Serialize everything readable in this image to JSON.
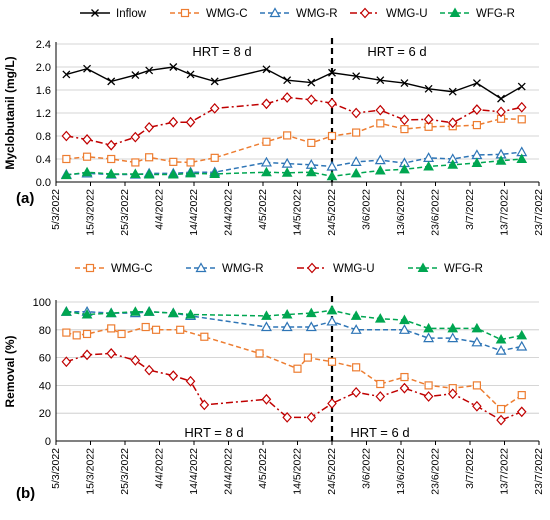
{
  "figure": {
    "chart_data": [
      {
        "panel_label": "(a)",
        "type": "line",
        "ylabel": "Myclobutanil (mg/L)",
        "xlabel": "",
        "ylim": [
          0,
          2.4
        ],
        "yticks": [
          "0.0",
          "0.4",
          "0.8",
          "1.2",
          "1.6",
          "2.0",
          "2.4"
        ],
        "grid": "horizontal",
        "legend": "top",
        "x_tick_labels": [
          "5/3/2022",
          "15/3/2022",
          "25/3/2022",
          "4/4/2022",
          "14/4/2022",
          "24/4/2022",
          "4/5/2022",
          "14/5/2022",
          "24/5/2022",
          "3/6/2022",
          "13/6/2022",
          "23/6/2022",
          "3/7/2022",
          "13/7/2022",
          "23/7/2022"
        ],
        "annotations": [
          "HRT = 8 d",
          "HRT = 6 d"
        ],
        "divider_date": "24/5/2022",
        "series": [
          {
            "name": "Inflow",
            "color": "#000000",
            "marker": "x",
            "dash": "solid",
            "x": [
              "8/3/2022",
              "14/3/2022",
              "21/3/2022",
              "28/3/2022",
              "1/4/2022",
              "8/4/2022",
              "13/4/2022",
              "20/4/2022",
              "5/5/2022",
              "11/5/2022",
              "18/5/2022",
              "24/5/2022",
              "31/5/2022",
              "7/6/2022",
              "14/6/2022",
              "21/6/2022",
              "28/6/2022",
              "5/7/2022",
              "12/7/2022",
              "18/7/2022"
            ],
            "y": [
              1.87,
              1.97,
              1.75,
              1.86,
              1.94,
              2.0,
              1.87,
              1.75,
              1.96,
              1.77,
              1.73,
              1.9,
              1.84,
              1.77,
              1.72,
              1.62,
              1.57,
              1.72,
              1.45,
              1.66
            ]
          },
          {
            "name": "WMG-C",
            "color": "#ED7D31",
            "marker": "square",
            "dash": "dash",
            "x": [
              "8/3/2022",
              "14/3/2022",
              "21/3/2022",
              "28/3/2022",
              "1/4/2022",
              "8/4/2022",
              "13/4/2022",
              "20/4/2022",
              "5/5/2022",
              "11/5/2022",
              "18/5/2022",
              "24/5/2022",
              "31/5/2022",
              "7/6/2022",
              "14/6/2022",
              "21/6/2022",
              "28/6/2022",
              "5/7/2022",
              "12/7/2022",
              "18/7/2022"
            ],
            "y": [
              0.4,
              0.44,
              0.4,
              0.34,
              0.43,
              0.35,
              0.34,
              0.42,
              0.7,
              0.81,
              0.68,
              0.8,
              0.86,
              1.02,
              0.92,
              0.96,
              0.97,
              0.99,
              1.1,
              1.09
            ]
          },
          {
            "name": "WMG-R",
            "color": "#2E75B6",
            "marker": "triangle-open",
            "dash": "dash",
            "x": [
              "8/3/2022",
              "14/3/2022",
              "21/3/2022",
              "28/3/2022",
              "1/4/2022",
              "8/4/2022",
              "13/4/2022",
              "20/4/2022",
              "5/5/2022",
              "11/5/2022",
              "18/5/2022",
              "24/5/2022",
              "31/5/2022",
              "7/6/2022",
              "14/6/2022",
              "21/6/2022",
              "28/6/2022",
              "5/7/2022",
              "12/7/2022",
              "18/7/2022"
            ],
            "y": [
              0.13,
              0.15,
              0.13,
              0.13,
              0.15,
              0.15,
              0.17,
              0.17,
              0.34,
              0.32,
              0.3,
              0.27,
              0.35,
              0.38,
              0.33,
              0.42,
              0.4,
              0.47,
              0.48,
              0.52
            ]
          },
          {
            "name": "WMG-U",
            "color": "#C00000",
            "marker": "diamond",
            "dash": "dashdot",
            "x": [
              "8/3/2022",
              "14/3/2022",
              "21/3/2022",
              "28/3/2022",
              "1/4/2022",
              "8/4/2022",
              "13/4/2022",
              "20/4/2022",
              "5/5/2022",
              "11/5/2022",
              "18/5/2022",
              "24/5/2022",
              "31/5/2022",
              "7/6/2022",
              "14/6/2022",
              "21/6/2022",
              "28/6/2022",
              "5/7/2022",
              "12/7/2022",
              "18/7/2022"
            ],
            "y": [
              0.8,
              0.74,
              0.64,
              0.78,
              0.95,
              1.04,
              1.04,
              1.28,
              1.36,
              1.47,
              1.43,
              1.37,
              1.2,
              1.25,
              1.08,
              1.09,
              1.03,
              1.26,
              1.22,
              1.3
            ]
          },
          {
            "name": "WFG-R",
            "color": "#00A651",
            "marker": "triangle-filled",
            "dash": "dash",
            "x": [
              "8/3/2022",
              "14/3/2022",
              "21/3/2022",
              "28/3/2022",
              "1/4/2022",
              "8/4/2022",
              "13/4/2022",
              "20/4/2022",
              "5/5/2022",
              "11/5/2022",
              "18/5/2022",
              "24/5/2022",
              "31/5/2022",
              "7/6/2022",
              "14/6/2022",
              "21/6/2022",
              "28/6/2022",
              "5/7/2022",
              "12/7/2022",
              "18/7/2022"
            ],
            "y": [
              0.12,
              0.17,
              0.14,
              0.14,
              0.13,
              0.13,
              0.15,
              0.14,
              0.17,
              0.16,
              0.17,
              0.1,
              0.15,
              0.2,
              0.22,
              0.27,
              0.3,
              0.33,
              0.37,
              0.4
            ]
          }
        ]
      },
      {
        "panel_label": "(b)",
        "type": "line",
        "ylabel": "Removal (%)",
        "xlabel": "",
        "ylim": [
          0,
          100
        ],
        "yticks": [
          "0",
          "20",
          "40",
          "60",
          "80",
          "100"
        ],
        "grid": "horizontal",
        "legend": "top",
        "x_tick_labels": [
          "5/3/2022",
          "15/3/2022",
          "25/3/2022",
          "4/4/2022",
          "14/4/2022",
          "24/4/2022",
          "4/5/2022",
          "14/5/2022",
          "24/5/2022",
          "3/6/2022",
          "13/6/2022",
          "23/6/2022",
          "3/7/2022",
          "13/7/2022",
          "23/7/2022"
        ],
        "annotations": [
          "HRT = 8 d",
          "HRT = 6 d"
        ],
        "divider_date": "24/5/2022",
        "series": [
          {
            "name": "WMG-C",
            "color": "#ED7D31",
            "marker": "square",
            "dash": "dash",
            "x": [
              "8/3/2022",
              "11/3/2022",
              "14/3/2022",
              "21/3/2022",
              "24/3/2022",
              "31/3/2022",
              "3/4/2022",
              "10/4/2022",
              "17/4/2022",
              "3/5/2022",
              "14/5/2022",
              "17/5/2022",
              "24/5/2022",
              "31/5/2022",
              "7/6/2022",
              "14/6/2022",
              "21/6/2022",
              "28/6/2022",
              "5/7/2022",
              "12/7/2022",
              "18/7/2022"
            ],
            "y": [
              78,
              76,
              77,
              81,
              77,
              82,
              80,
              80,
              75,
              63,
              52,
              60,
              57,
              53,
              41,
              46,
              40,
              38,
              40,
              23,
              33
            ]
          },
          {
            "name": "WMG-R",
            "color": "#2E75B6",
            "marker": "triangle-open",
            "dash": "dash",
            "x": [
              "8/3/2022",
              "14/3/2022",
              "21/3/2022",
              "28/3/2022",
              "1/4/2022",
              "8/4/2022",
              "13/4/2022",
              "5/5/2022",
              "11/5/2022",
              "18/5/2022",
              "24/5/2022",
              "31/5/2022",
              "14/6/2022",
              "21/6/2022",
              "28/6/2022",
              "5/7/2022",
              "12/7/2022",
              "18/7/2022"
            ],
            "y": [
              93,
              93,
              92,
              92,
              93,
              92,
              90,
              82,
              82,
              82,
              86,
              80,
              80,
              74,
              74,
              71,
              65,
              68
            ]
          },
          {
            "name": "WMG-U",
            "color": "#C00000",
            "marker": "diamond",
            "dash": "dashdot",
            "x": [
              "8/3/2022",
              "14/3/2022",
              "21/3/2022",
              "28/3/2022",
              "1/4/2022",
              "8/4/2022",
              "13/4/2022",
              "17/4/2022",
              "5/5/2022",
              "11/5/2022",
              "18/5/2022",
              "24/5/2022",
              "31/5/2022",
              "7/6/2022",
              "14/6/2022",
              "21/6/2022",
              "28/6/2022",
              "5/7/2022",
              "12/7/2022",
              "18/7/2022"
            ],
            "y": [
              57,
              62,
              63,
              58,
              51,
              47,
              43,
              26,
              30,
              17,
              17,
              27,
              35,
              32,
              38,
              32,
              34,
              25,
              15,
              21
            ]
          },
          {
            "name": "WFG-R",
            "color": "#00A651",
            "marker": "triangle-filled",
            "dash": "dash",
            "x": [
              "8/3/2022",
              "14/3/2022",
              "21/3/2022",
              "28/3/2022",
              "1/4/2022",
              "8/4/2022",
              "13/4/2022",
              "5/5/2022",
              "11/5/2022",
              "18/5/2022",
              "24/5/2022",
              "31/5/2022",
              "7/6/2022",
              "14/6/2022",
              "21/6/2022",
              "28/6/2022",
              "5/7/2022",
              "12/7/2022",
              "18/7/2022"
            ],
            "y": [
              93,
              91,
              92,
              93,
              93,
              92,
              91,
              90,
              91,
              92,
              94,
              90,
              88,
              87,
              81,
              81,
              81,
              73,
              76
            ]
          }
        ]
      }
    ]
  }
}
